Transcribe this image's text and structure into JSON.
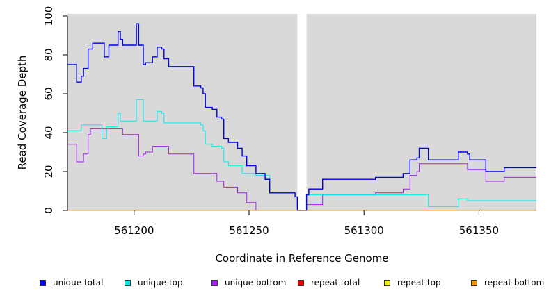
{
  "chart_data": {
    "type": "line",
    "title": "",
    "xlabel": "Coordinate in Reference Genome",
    "ylabel": "Read Coverage Depth",
    "xlim": [
      561171,
      561375
    ],
    "ylim": [
      0,
      100
    ],
    "xticks": [
      561200,
      561250,
      561300,
      561350
    ],
    "yticks": [
      0,
      20,
      40,
      60,
      80,
      100
    ],
    "shaded_regions": [
      [
        561171,
        561271
      ],
      [
        561275,
        561375
      ]
    ],
    "legend_position": "bottom",
    "series": [
      {
        "name": "unique total",
        "color": "#0000ee",
        "steps": [
          [
            561171,
            75
          ],
          [
            561175,
            66
          ],
          [
            561177,
            69
          ],
          [
            561178,
            73
          ],
          [
            561180,
            83
          ],
          [
            561182,
            86
          ],
          [
            561187,
            79
          ],
          [
            561189,
            85
          ],
          [
            561193,
            92
          ],
          [
            561194,
            88
          ],
          [
            561195,
            85
          ],
          [
            561201,
            96
          ],
          [
            561202,
            85
          ],
          [
            561204,
            75
          ],
          [
            561205,
            76
          ],
          [
            561208,
            79
          ],
          [
            561210,
            84
          ],
          [
            561212,
            83
          ],
          [
            561213,
            78
          ],
          [
            561215,
            74
          ],
          [
            561226,
            64
          ],
          [
            561229,
            63
          ],
          [
            561230,
            60
          ],
          [
            561231,
            53
          ],
          [
            561234,
            52
          ],
          [
            561236,
            48
          ],
          [
            561238,
            47
          ],
          [
            561239,
            37
          ],
          [
            561241,
            35
          ],
          [
            561245,
            32
          ],
          [
            561247,
            28
          ],
          [
            561249,
            23
          ],
          [
            561253,
            19
          ],
          [
            561257,
            16
          ],
          [
            561259,
            9
          ],
          [
            561270,
            7
          ],
          [
            561271,
            0
          ],
          [
            561275,
            8
          ],
          [
            561276,
            11
          ],
          [
            561282,
            16
          ],
          [
            561305,
            17
          ],
          [
            561317,
            19
          ],
          [
            561320,
            26
          ],
          [
            561323,
            27
          ],
          [
            561324,
            32
          ],
          [
            561328,
            26
          ],
          [
            561341,
            30
          ],
          [
            561345,
            29
          ],
          [
            561346,
            26
          ],
          [
            561353,
            20
          ],
          [
            561361,
            22
          ],
          [
            561375,
            22
          ]
        ]
      },
      {
        "name": "unique top",
        "color": "#00eeee",
        "steps": [
          [
            561171,
            41
          ],
          [
            561177,
            44
          ],
          [
            561186,
            37
          ],
          [
            561188,
            43
          ],
          [
            561193,
            50
          ],
          [
            561194,
            46
          ],
          [
            561201,
            57
          ],
          [
            561204,
            46
          ],
          [
            561210,
            51
          ],
          [
            561212,
            50
          ],
          [
            561213,
            45
          ],
          [
            561229,
            44
          ],
          [
            561230,
            41
          ],
          [
            561231,
            34
          ],
          [
            561234,
            33
          ],
          [
            561238,
            32
          ],
          [
            561239,
            25
          ],
          [
            561241,
            23
          ],
          [
            561247,
            19
          ],
          [
            561253,
            18
          ],
          [
            561259,
            9
          ],
          [
            561270,
            7
          ],
          [
            561271,
            0
          ],
          [
            561275,
            8
          ],
          [
            561305,
            8
          ],
          [
            561328,
            2
          ],
          [
            561341,
            6
          ],
          [
            561345,
            5
          ],
          [
            561375,
            5
          ]
        ]
      },
      {
        "name": "unique bottom",
        "color": "#a020f0",
        "steps": [
          [
            561171,
            34
          ],
          [
            561175,
            25
          ],
          [
            561178,
            29
          ],
          [
            561180,
            39
          ],
          [
            561181,
            42
          ],
          [
            561195,
            39
          ],
          [
            561202,
            28
          ],
          [
            561204,
            29
          ],
          [
            561205,
            30
          ],
          [
            561208,
            33
          ],
          [
            561215,
            29
          ],
          [
            561226,
            19
          ],
          [
            561236,
            15
          ],
          [
            561239,
            12
          ],
          [
            561245,
            9
          ],
          [
            561249,
            4
          ],
          [
            561253,
            0
          ],
          [
            561271,
            0
          ],
          [
            561275,
            3
          ],
          [
            561282,
            8
          ],
          [
            561305,
            9
          ],
          [
            561317,
            11
          ],
          [
            561320,
            18
          ],
          [
            561323,
            20
          ],
          [
            561324,
            24
          ],
          [
            561345,
            21
          ],
          [
            561353,
            15
          ],
          [
            561361,
            17
          ],
          [
            561375,
            17
          ]
        ]
      },
      {
        "name": "repeat total",
        "color": "#ee0000",
        "steps": [
          [
            561171,
            0
          ],
          [
            561375,
            0
          ]
        ]
      },
      {
        "name": "repeat top",
        "color": "#eeee00",
        "steps": [
          [
            561171,
            0
          ],
          [
            561375,
            0
          ]
        ]
      },
      {
        "name": "repeat bottom",
        "color": "#ee9a00",
        "steps": [
          [
            561171,
            0
          ],
          [
            561375,
            0
          ]
        ]
      }
    ]
  },
  "legend": [
    {
      "label": "unique total",
      "color": "#0000ee"
    },
    {
      "label": "unique top",
      "color": "#00eeee"
    },
    {
      "label": "unique bottom",
      "color": "#a020f0"
    },
    {
      "label": "repeat total",
      "color": "#ee0000"
    },
    {
      "label": "repeat top",
      "color": "#eeee00"
    },
    {
      "label": "repeat bottom",
      "color": "#ee9a00"
    }
  ]
}
